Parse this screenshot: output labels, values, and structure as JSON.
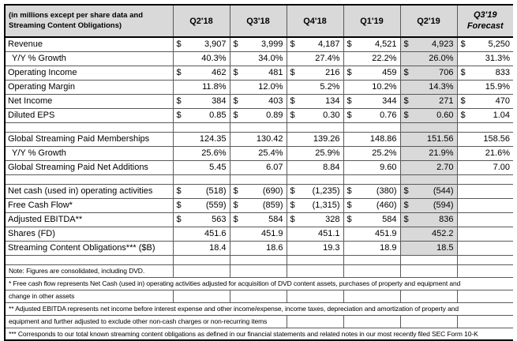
{
  "table": {
    "units_note": "(in millions except per share data and Streaming Content Obligations)",
    "columns": [
      "Q2'18",
      "Q3'18",
      "Q4'18",
      "Q1'19",
      "Q2'19",
      "Q3'19\nForecast"
    ],
    "highlight_column": "Q2'19",
    "highlight_color": "#d9d9d9",
    "header_bg_color": "#d9d9d9",
    "rows": [
      {
        "label": "Revenue",
        "dollar": true,
        "values": [
          "3,907",
          "3,999",
          "4,187",
          "4,521",
          "4,923",
          "5,250"
        ]
      },
      {
        "label": "Y/Y % Growth",
        "indent": true,
        "values": [
          "40.3%",
          "34.0%",
          "27.4%",
          "22.2%",
          "26.0%",
          "31.3%"
        ]
      },
      {
        "label": "Operating Income",
        "dollar": true,
        "values": [
          "462",
          "481",
          "216",
          "459",
          "706",
          "833"
        ]
      },
      {
        "label": "Operating Margin",
        "values": [
          "11.8%",
          "12.0%",
          "5.2%",
          "10.2%",
          "14.3%",
          "15.9%"
        ]
      },
      {
        "label": "Net Income",
        "dollar": true,
        "values": [
          "384",
          "403",
          "134",
          "344",
          "271",
          "470"
        ]
      },
      {
        "label": "Diluted EPS",
        "dollar": true,
        "values": [
          "0.85",
          "0.89",
          "0.30",
          "0.76",
          "0.60",
          "1.04"
        ]
      },
      {
        "blank": true
      },
      {
        "label": "Global Streaming Paid Memberships",
        "values": [
          "124.35",
          "130.42",
          "139.26",
          "148.86",
          "151.56",
          "158.56"
        ]
      },
      {
        "label": "Y/Y % Growth",
        "indent": true,
        "values": [
          "25.6%",
          "25.4%",
          "25.9%",
          "25.2%",
          "21.9%",
          "21.6%"
        ]
      },
      {
        "label": "Global Streaming Paid Net Additions",
        "values": [
          "5.45",
          "6.07",
          "8.84",
          "9.60",
          "2.70",
          "7.00"
        ]
      },
      {
        "blank": true
      },
      {
        "label": "Net cash (used in) operating activities",
        "dollar": true,
        "values": [
          "(518)",
          "(690)",
          "(1,235)",
          "(380)",
          "(544)",
          ""
        ]
      },
      {
        "label": "Free Cash Flow*",
        "dollar": true,
        "values": [
          "(559)",
          "(859)",
          "(1,315)",
          "(460)",
          "(594)",
          ""
        ]
      },
      {
        "label": "Adjusted EBITDA**",
        "dollar": true,
        "values": [
          "563",
          "584",
          "328",
          "584",
          "836",
          ""
        ]
      },
      {
        "label": "Shares (FD)",
        "values": [
          "451.6",
          "451.9",
          "451.1",
          "451.9",
          "452.2",
          ""
        ]
      },
      {
        "label": "Streaming Content Obligations*** ($B)",
        "values": [
          "18.4",
          "18.6",
          "19.3",
          "18.9",
          "18.5",
          ""
        ]
      },
      {
        "blank": true,
        "shade": false
      }
    ]
  },
  "notes": [
    {
      "text": "Note: Figures are consolidated, including DVD.",
      "span": 1
    },
    {
      "text": "* Free cash flow represents Net Cash (used in) operating activities adjusted for acquisition of DVD content assets, purchases of property and equipment and",
      "span": 7
    },
    {
      "text": "change in other assets",
      "span": 1
    },
    {
      "text": "** Adjusted EBITDA represents net income before interest expense and other income/expense, income taxes, depreciation and amortization of property and",
      "span": 7
    },
    {
      "text": "equipment and further adjusted to exclude other non-cash charges or non-recurring items",
      "span": 3
    },
    {
      "text": "*** Corresponds to our total known streaming content obligations as defined in our financial statements and related notes in our most recently filed SEC Form 10-K",
      "span": 7
    }
  ]
}
